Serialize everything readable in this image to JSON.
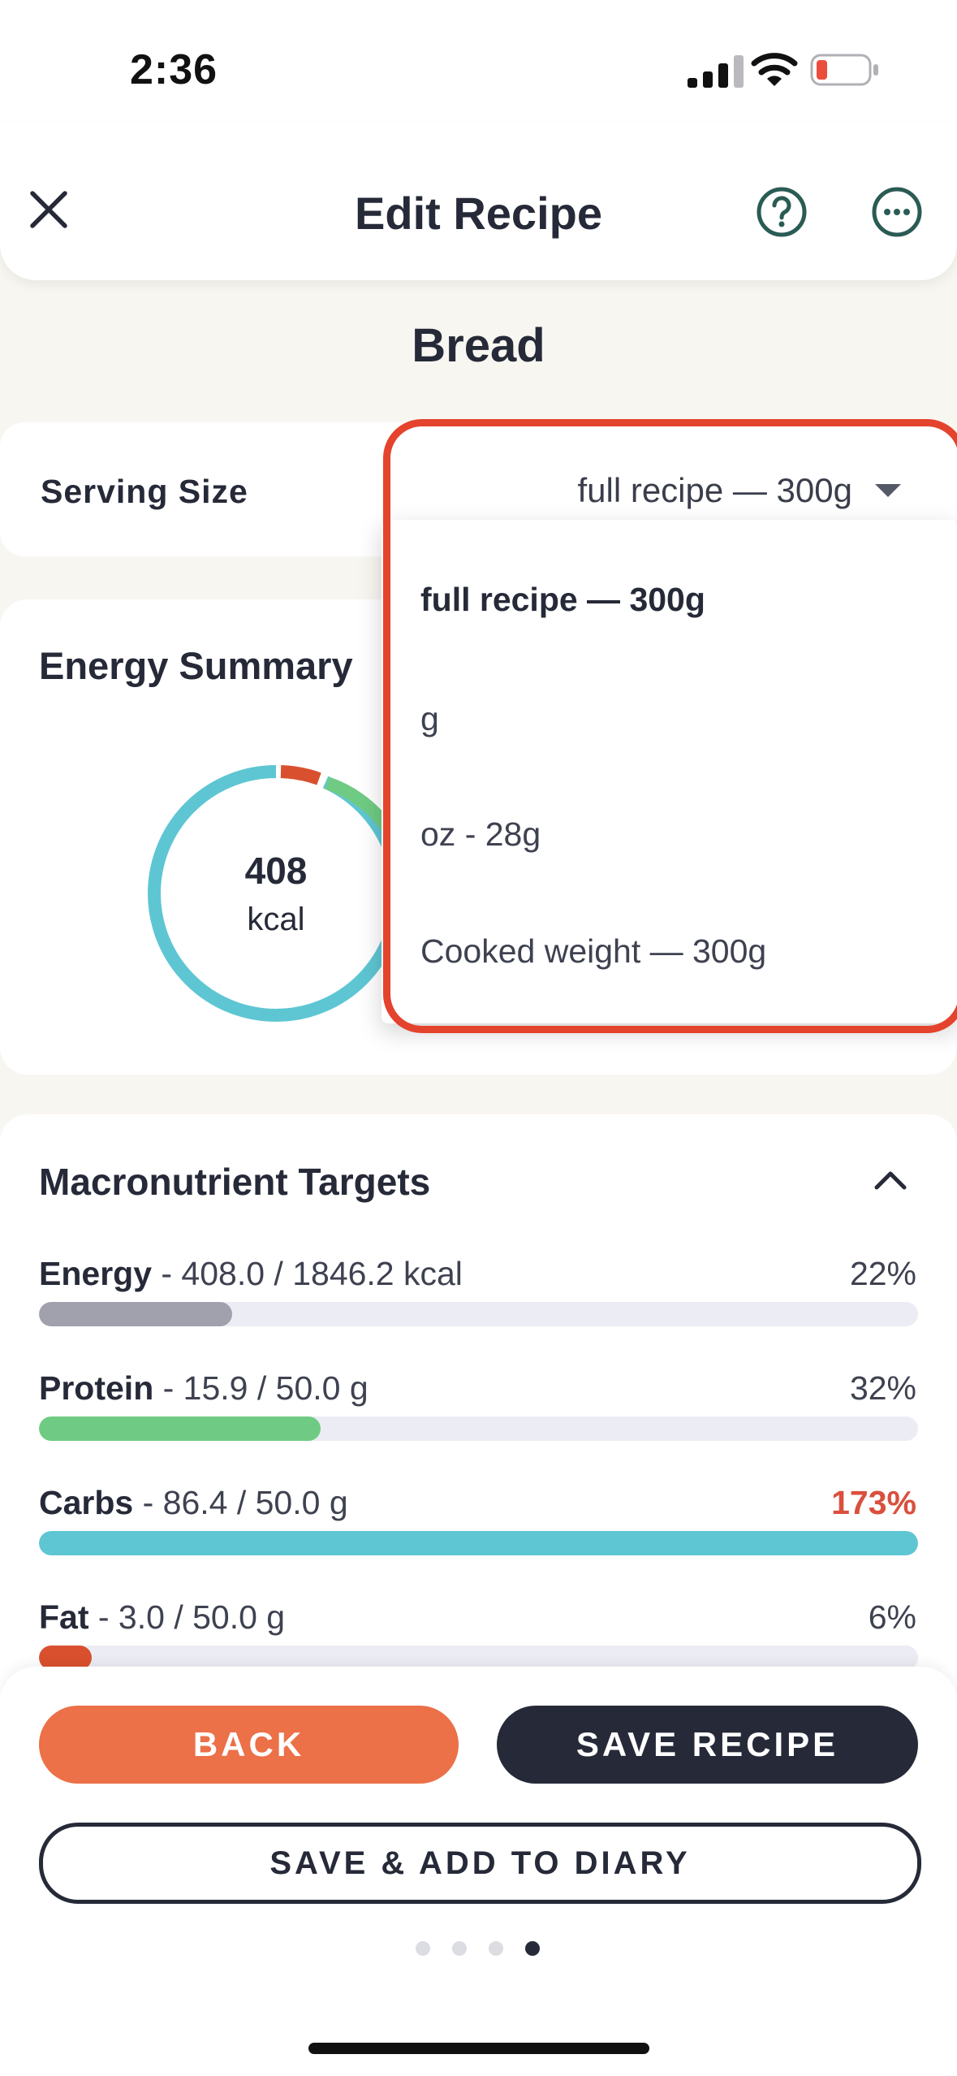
{
  "status_bar": {
    "time": "2:36"
  },
  "header": {
    "title": "Edit Recipe"
  },
  "recipe": {
    "name": "Bread"
  },
  "serving": {
    "label": "Serving Size",
    "selected": "full recipe — 300g",
    "options": [
      "full recipe — 300g",
      "g",
      "oz - 28g",
      "Cooked weight — 300g"
    ]
  },
  "energy_summary": {
    "title": "Energy Summary",
    "kcal_value": "408",
    "kcal_unit": "kcal"
  },
  "macros": {
    "title": "Macronutrient Targets",
    "rows": [
      {
        "name": "Energy",
        "detail": " - 408.0 / 1846.2 kcal",
        "pct": "22%",
        "fill": 0.22,
        "color": "#a0a1ad"
      },
      {
        "name": "Protein",
        "detail": " - 15.9 / 50.0 g",
        "pct": "32%",
        "fill": 0.32,
        "color": "#6fcb83"
      },
      {
        "name": "Carbs",
        "detail": " - 86.4 / 50.0 g",
        "pct": "173%",
        "fill": 1.0,
        "color": "#5ec6d3"
      },
      {
        "name": "Fat",
        "detail": " - 3.0 / 50.0 g",
        "pct": "6%",
        "fill": 0.06,
        "color": "#d9502e"
      }
    ]
  },
  "buttons": {
    "back": "BACK",
    "save": "SAVE RECIPE",
    "save_add": "SAVE & ADD TO DIARY"
  },
  "pagination": {
    "total": 4,
    "active": 4
  },
  "colors": {
    "accent": "#ec7048",
    "dark": "#262a38",
    "highlight": "#e4432d",
    "teal": "#2a5b55"
  }
}
